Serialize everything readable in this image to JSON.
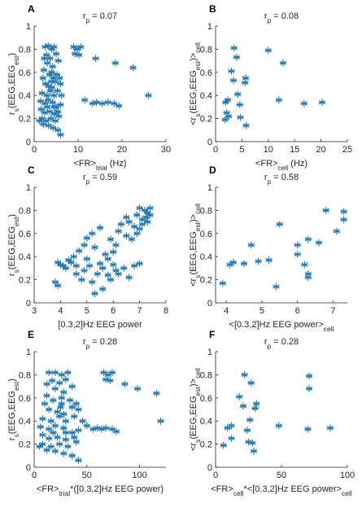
{
  "colors": {
    "marker": "#1f77b4",
    "axis": "#262626"
  },
  "chart_data": [
    {
      "panel": "A",
      "type": "scatter",
      "title": "r_p = 0.07",
      "xlabel": "<FR>_trial (Hz)",
      "ylabel": "r_s(EEG,EEG_est)",
      "xlim": [
        0,
        30
      ],
      "ylim": [
        0,
        1
      ],
      "xticks": [
        0,
        10,
        20,
        30
      ],
      "yticks": [
        0,
        0.2,
        0.4,
        0.6,
        0.8,
        1
      ],
      "points": [
        [
          2.5,
          0.82
        ],
        [
          3.2,
          0.83
        ],
        [
          4.0,
          0.8
        ],
        [
          4.5,
          0.82
        ],
        [
          2.8,
          0.75
        ],
        [
          3.6,
          0.72
        ],
        [
          5.0,
          0.76
        ],
        [
          2.2,
          0.62
        ],
        [
          3.0,
          0.68
        ],
        [
          4.2,
          0.65
        ],
        [
          5.5,
          0.7
        ],
        [
          2.0,
          0.55
        ],
        [
          3.5,
          0.58
        ],
        [
          4.4,
          0.55
        ],
        [
          5.2,
          0.58
        ],
        [
          2.6,
          0.5
        ],
        [
          3.3,
          0.48
        ],
        [
          4.0,
          0.47
        ],
        [
          4.8,
          0.52
        ],
        [
          6.0,
          0.5
        ],
        [
          1.8,
          0.42
        ],
        [
          2.9,
          0.4
        ],
        [
          3.7,
          0.44
        ],
        [
          4.5,
          0.4
        ],
        [
          5.3,
          0.44
        ],
        [
          1.5,
          0.35
        ],
        [
          2.5,
          0.33
        ],
        [
          3.2,
          0.36
        ],
        [
          4.2,
          0.34
        ],
        [
          5.0,
          0.3
        ],
        [
          6.0,
          0.32
        ],
        [
          1.6,
          0.28
        ],
        [
          2.4,
          0.25
        ],
        [
          3.5,
          0.26
        ],
        [
          4.6,
          0.24
        ],
        [
          5.4,
          0.26
        ],
        [
          1.8,
          0.2
        ],
        [
          2.7,
          0.18
        ],
        [
          3.8,
          0.2
        ],
        [
          4.8,
          0.18
        ],
        [
          5.6,
          0.22
        ],
        [
          2.1,
          0.15
        ],
        [
          3.3,
          0.14
        ],
        [
          4.3,
          0.12
        ],
        [
          5.4,
          0.1
        ],
        [
          6.0,
          0.06
        ],
        [
          1.2,
          0.18
        ],
        [
          4.0,
          0.6
        ],
        [
          4.6,
          0.3
        ],
        [
          3.0,
          0.3
        ],
        [
          9.0,
          0.82
        ],
        [
          9.8,
          0.8
        ],
        [
          10.6,
          0.82
        ],
        [
          9.3,
          0.76
        ],
        [
          10.2,
          0.75
        ],
        [
          14.0,
          0.72
        ],
        [
          18.5,
          0.68
        ],
        [
          22.5,
          0.64
        ],
        [
          26.0,
          0.4
        ],
        [
          11.5,
          0.36
        ],
        [
          14.2,
          0.34
        ],
        [
          15.5,
          0.33
        ],
        [
          16.8,
          0.34
        ],
        [
          18.2,
          0.33
        ],
        [
          19.3,
          0.31
        ],
        [
          13.3,
          0.33
        ],
        [
          6.2,
          0.4
        ],
        [
          5.8,
          0.55
        ],
        [
          2.3,
          0.72
        ],
        [
          3.9,
          0.52
        ]
      ]
    },
    {
      "panel": "B",
      "type": "scatter",
      "title": "r_p = 0.08",
      "xlabel": "<FR>_cell (Hz)",
      "ylabel": "<r_s(EEG,EEG_est)>_cell",
      "xlim": [
        0,
        25
      ],
      "ylim": [
        0,
        1
      ],
      "xticks": [
        0,
        5,
        10,
        15,
        20,
        25
      ],
      "yticks": [
        0,
        0.2,
        0.4,
        0.6,
        0.8,
        1
      ],
      "points": [
        [
          3.5,
          0.81
        ],
        [
          10.0,
          0.79
        ],
        [
          4.0,
          0.73
        ],
        [
          12.8,
          0.68
        ],
        [
          3.0,
          0.61
        ],
        [
          5.7,
          0.55
        ],
        [
          3.4,
          0.53
        ],
        [
          5.6,
          0.51
        ],
        [
          4.2,
          0.41
        ],
        [
          2.3,
          0.36
        ],
        [
          12.0,
          0.36
        ],
        [
          1.9,
          0.34
        ],
        [
          20.2,
          0.34
        ],
        [
          16.8,
          0.33
        ],
        [
          4.6,
          0.32
        ],
        [
          2.1,
          0.25
        ],
        [
          2.5,
          0.22
        ],
        [
          4.7,
          0.21
        ],
        [
          1.8,
          0.19
        ],
        [
          5.8,
          0.14
        ]
      ]
    },
    {
      "panel": "C",
      "type": "scatter",
      "title": "r_p = 0.59",
      "xlabel": "[0.3,2]Hz EEG power",
      "ylabel": "r_s(EEG,EEG_est)",
      "xlim": [
        3,
        8
      ],
      "ylim": [
        0,
        1
      ],
      "xticks": [
        3,
        4,
        5,
        6,
        7,
        8
      ],
      "yticks": [
        0,
        0.2,
        0.4,
        0.6,
        0.8,
        1
      ],
      "points": [
        [
          7.0,
          0.82
        ],
        [
          7.2,
          0.8
        ],
        [
          7.4,
          0.82
        ],
        [
          6.9,
          0.76
        ],
        [
          7.3,
          0.78
        ],
        [
          7.1,
          0.72
        ],
        [
          6.6,
          0.7
        ],
        [
          6.8,
          0.66
        ],
        [
          7.0,
          0.64
        ],
        [
          6.2,
          0.62
        ],
        [
          6.5,
          0.58
        ],
        [
          6.7,
          0.55
        ],
        [
          5.9,
          0.55
        ],
        [
          6.1,
          0.5
        ],
        [
          5.5,
          0.65
        ],
        [
          5.2,
          0.6
        ],
        [
          5.0,
          0.56
        ],
        [
          4.9,
          0.5
        ],
        [
          5.3,
          0.48
        ],
        [
          4.7,
          0.45
        ],
        [
          4.5,
          0.4
        ],
        [
          5.8,
          0.38
        ],
        [
          6.0,
          0.33
        ],
        [
          6.4,
          0.3
        ],
        [
          6.8,
          0.32
        ],
        [
          7.0,
          0.34
        ],
        [
          5.6,
          0.3
        ],
        [
          5.4,
          0.25
        ],
        [
          6.2,
          0.25
        ],
        [
          6.6,
          0.22
        ],
        [
          5.9,
          0.2
        ],
        [
          5.2,
          0.18
        ],
        [
          4.8,
          0.2
        ],
        [
          4.6,
          0.25
        ],
        [
          4.2,
          0.3
        ],
        [
          4.0,
          0.33
        ],
        [
          3.9,
          0.35
        ],
        [
          4.3,
          0.37
        ],
        [
          3.8,
          0.18
        ],
        [
          3.9,
          0.15
        ],
        [
          5.3,
          0.08
        ],
        [
          5.6,
          0.12
        ],
        [
          4.9,
          0.28
        ],
        [
          5.1,
          0.32
        ],
        [
          6.3,
          0.68
        ],
        [
          6.5,
          0.74
        ],
        [
          7.25,
          0.74
        ],
        [
          6.0,
          0.44
        ],
        [
          5.7,
          0.42
        ],
        [
          4.4,
          0.35
        ],
        [
          6.9,
          0.6
        ],
        [
          7.1,
          0.68
        ],
        [
          7.3,
          0.7
        ],
        [
          7.4,
          0.76
        ],
        [
          5.0,
          0.38
        ],
        [
          5.5,
          0.34
        ],
        [
          6.1,
          0.28
        ],
        [
          4.1,
          0.32
        ],
        [
          4.6,
          0.32
        ],
        [
          5.8,
          0.24
        ]
      ]
    },
    {
      "panel": "D",
      "type": "scatter",
      "title": "r_p = 0.58",
      "xlabel": "<[0.3,2]Hz EEG power>_cell",
      "ylabel": "<r_s(EEG,EEG_est)>_cell",
      "xlim": [
        3.7,
        7.4
      ],
      "ylim": [
        0,
        1
      ],
      "xticks": [
        4,
        5,
        6,
        7
      ],
      "yticks": [
        0,
        0.2,
        0.4,
        0.6,
        0.8,
        1
      ],
      "points": [
        [
          6.8,
          0.8
        ],
        [
          7.3,
          0.79
        ],
        [
          7.3,
          0.72
        ],
        [
          7.1,
          0.62
        ],
        [
          5.5,
          0.68
        ],
        [
          6.3,
          0.55
        ],
        [
          6.6,
          0.52
        ],
        [
          6.0,
          0.5
        ],
        [
          4.7,
          0.5
        ],
        [
          6.0,
          0.42
        ],
        [
          4.2,
          0.35
        ],
        [
          4.1,
          0.33
        ],
        [
          4.5,
          0.34
        ],
        [
          4.9,
          0.36
        ],
        [
          5.2,
          0.37
        ],
        [
          6.2,
          0.33
        ],
        [
          6.3,
          0.25
        ],
        [
          6.3,
          0.22
        ],
        [
          3.9,
          0.17
        ],
        [
          5.4,
          0.14
        ]
      ]
    },
    {
      "panel": "E",
      "type": "scatter",
      "title": "r_p = 0.28",
      "xlabel": "<FR>_trial*([0.3,2]Hz EEG power)",
      "ylabel": "r_s(EEG,EEG_est)",
      "xlim": [
        0,
        125
      ],
      "ylim": [
        0,
        1
      ],
      "xticks": [
        0,
        50,
        100
      ],
      "yticks": [
        0,
        0.2,
        0.4,
        0.6,
        0.8,
        1
      ],
      "points": [
        [
          14,
          0.82
        ],
        [
          20,
          0.82
        ],
        [
          26,
          0.8
        ],
        [
          32,
          0.82
        ],
        [
          17,
          0.75
        ],
        [
          24,
          0.73
        ],
        [
          30,
          0.76
        ],
        [
          12,
          0.62
        ],
        [
          20,
          0.68
        ],
        [
          28,
          0.65
        ],
        [
          36,
          0.7
        ],
        [
          10,
          0.55
        ],
        [
          18,
          0.58
        ],
        [
          26,
          0.55
        ],
        [
          34,
          0.58
        ],
        [
          14,
          0.5
        ],
        [
          22,
          0.48
        ],
        [
          28,
          0.46
        ],
        [
          36,
          0.52
        ],
        [
          42,
          0.5
        ],
        [
          8,
          0.42
        ],
        [
          16,
          0.4
        ],
        [
          24,
          0.44
        ],
        [
          30,
          0.4
        ],
        [
          38,
          0.44
        ],
        [
          6,
          0.35
        ],
        [
          14,
          0.33
        ],
        [
          20,
          0.36
        ],
        [
          28,
          0.34
        ],
        [
          36,
          0.3
        ],
        [
          42,
          0.32
        ],
        [
          8,
          0.28
        ],
        [
          14,
          0.25
        ],
        [
          22,
          0.26
        ],
        [
          30,
          0.24
        ],
        [
          38,
          0.26
        ],
        [
          8,
          0.2
        ],
        [
          16,
          0.18
        ],
        [
          24,
          0.2
        ],
        [
          32,
          0.18
        ],
        [
          40,
          0.22
        ],
        [
          12,
          0.15
        ],
        [
          20,
          0.14
        ],
        [
          28,
          0.12
        ],
        [
          36,
          0.1
        ],
        [
          42,
          0.06
        ],
        [
          5,
          0.18
        ],
        [
          26,
          0.6
        ],
        [
          30,
          0.3
        ],
        [
          18,
          0.3
        ],
        [
          66,
          0.82
        ],
        [
          70,
          0.8
        ],
        [
          74,
          0.82
        ],
        [
          68,
          0.76
        ],
        [
          72,
          0.75
        ],
        [
          86,
          0.72
        ],
        [
          98,
          0.68
        ],
        [
          116,
          0.64
        ],
        [
          120,
          0.4
        ],
        [
          50,
          0.36
        ],
        [
          60,
          0.34
        ],
        [
          64,
          0.33
        ],
        [
          68,
          0.34
        ],
        [
          74,
          0.33
        ],
        [
          78,
          0.31
        ],
        [
          56,
          0.33
        ],
        [
          46,
          0.4
        ],
        [
          40,
          0.55
        ],
        [
          12,
          0.72
        ],
        [
          25,
          0.52
        ]
      ]
    },
    {
      "panel": "F",
      "type": "scatter",
      "title": "r_p = 0.28",
      "xlabel": "<FR>_cell*<[0.3,2]Hz EEG power>_cell",
      "ylabel": "<r_s(EEG,EEG_est)>_cell",
      "xlim": [
        0,
        100
      ],
      "ylim": [
        0,
        1
      ],
      "xticks": [
        0,
        50,
        100
      ],
      "yticks": [
        0,
        0.2,
        0.4,
        0.6,
        0.8,
        1
      ],
      "points": [
        [
          22,
          0.8
        ],
        [
          71,
          0.79
        ],
        [
          27,
          0.73
        ],
        [
          71,
          0.68
        ],
        [
          18,
          0.61
        ],
        [
          31,
          0.55
        ],
        [
          21,
          0.53
        ],
        [
          30,
          0.51
        ],
        [
          26,
          0.41
        ],
        [
          12,
          0.36
        ],
        [
          48,
          0.36
        ],
        [
          9,
          0.34
        ],
        [
          87,
          0.34
        ],
        [
          70,
          0.33
        ],
        [
          24,
          0.32
        ],
        [
          12,
          0.25
        ],
        [
          25,
          0.22
        ],
        [
          28,
          0.21
        ],
        [
          6,
          0.19
        ],
        [
          29,
          0.14
        ]
      ]
    }
  ]
}
